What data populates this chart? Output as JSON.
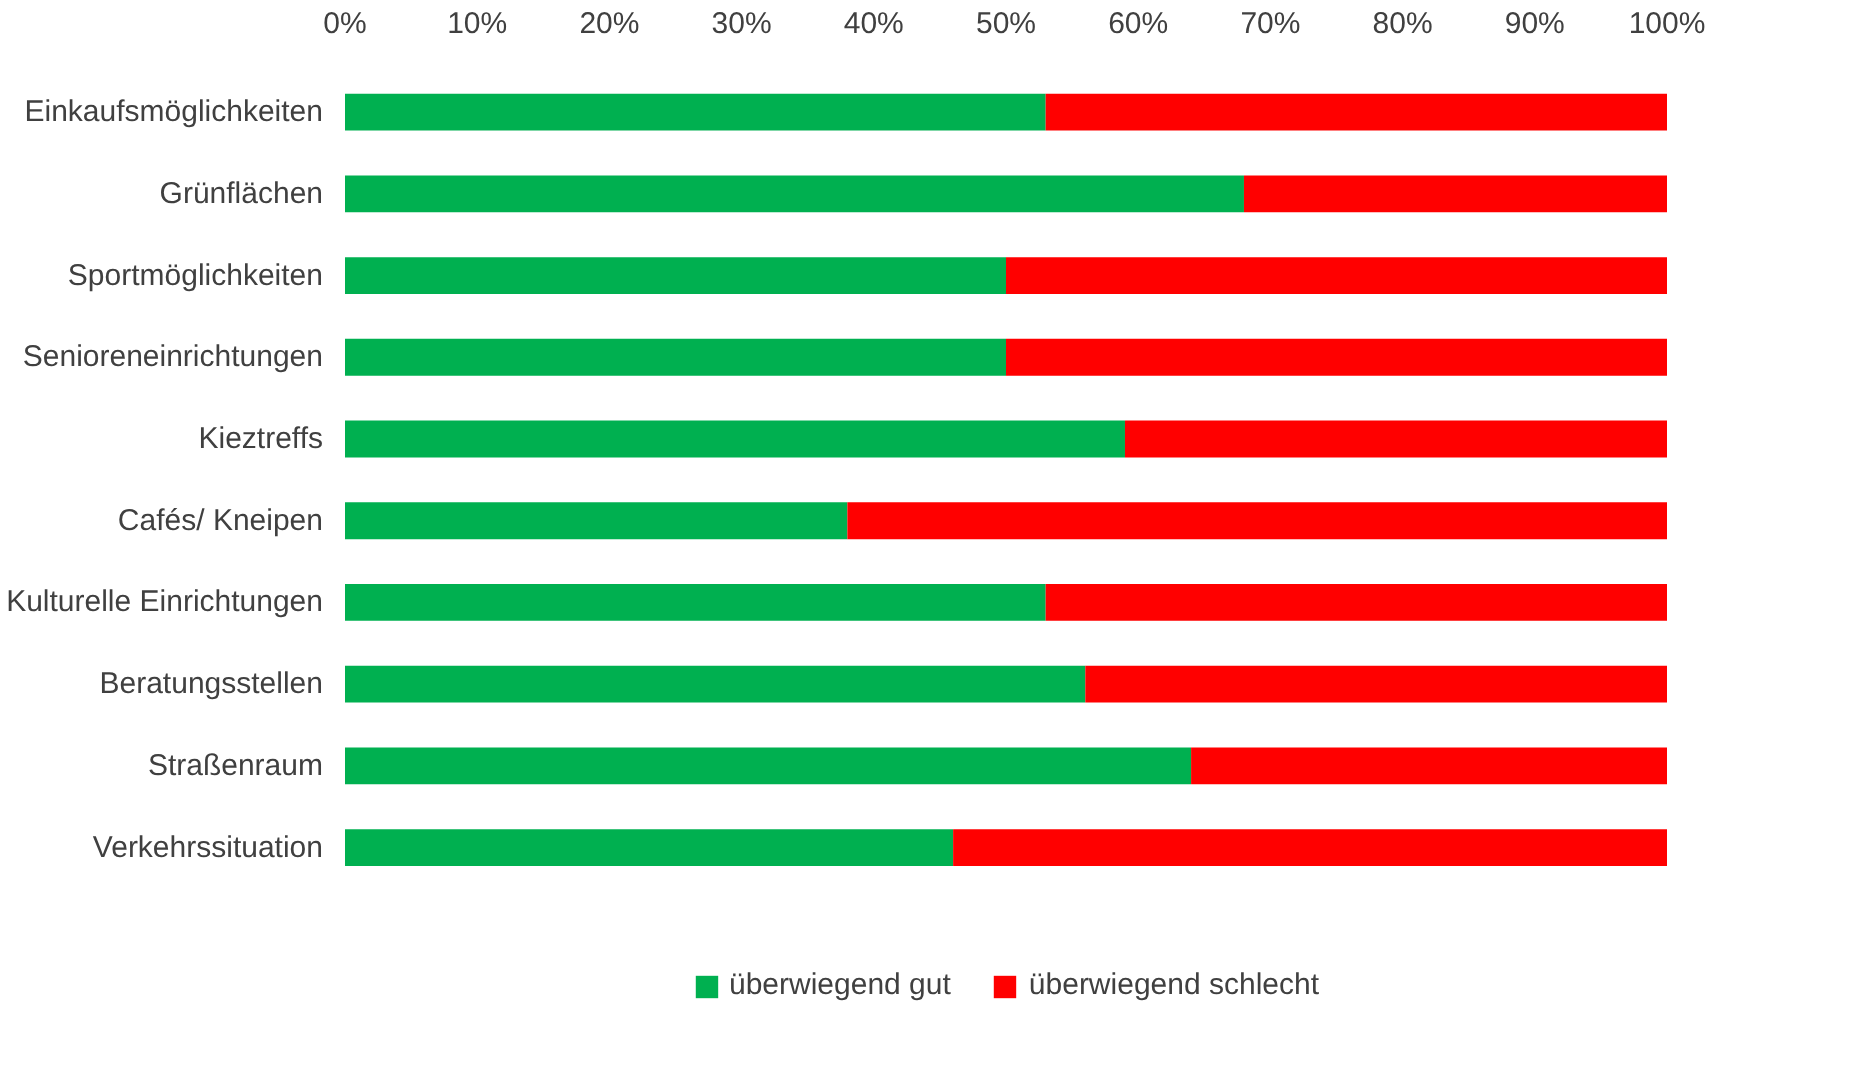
{
  "chart_data": {
    "type": "bar",
    "orientation": "horizontal",
    "stacked": true,
    "categories": [
      "Einkaufsmöglichkeiten",
      "Grünflächen",
      "Sportmöglichkeiten",
      "Senioreneinrichtungen",
      "Kieztreffs",
      "Cafés/ Kneipen",
      "Kulturelle Einrichtungen",
      "Beratungsstellen",
      "Straßenraum",
      "Verkehrssituation"
    ],
    "series": [
      {
        "name": "überwiegend gut",
        "color": "#00b050",
        "values": [
          53,
          68,
          50,
          50,
          59,
          38,
          53,
          56,
          64,
          46
        ]
      },
      {
        "name": "überwiegend schlecht",
        "color": "#ff0000",
        "values": [
          47,
          32,
          50,
          50,
          41,
          62,
          47,
          44,
          36,
          54
        ]
      }
    ],
    "xlim": [
      0,
      100
    ],
    "xticks": [
      {
        "value": 0,
        "label": "0%"
      },
      {
        "value": 10,
        "label": "10%"
      },
      {
        "value": 20,
        "label": "20%"
      },
      {
        "value": 30,
        "label": "30%"
      },
      {
        "value": 40,
        "label": "40%"
      },
      {
        "value": 50,
        "label": "50%"
      },
      {
        "value": 60,
        "label": "60%"
      },
      {
        "value": 70,
        "label": "70%"
      },
      {
        "value": 80,
        "label": "80%"
      },
      {
        "value": 90,
        "label": "90%"
      },
      {
        "value": 100,
        "label": "100%"
      }
    ],
    "grid": false,
    "legend": "bottom"
  }
}
